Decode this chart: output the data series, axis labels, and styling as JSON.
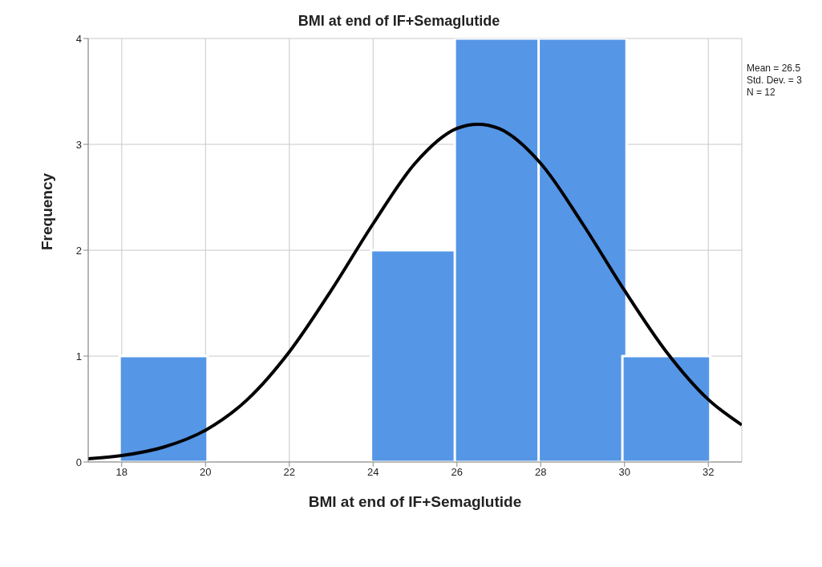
{
  "chart_data": {
    "type": "histogram",
    "title": "BMI at end of IF+Semaglutide",
    "xlabel": "BMI at end of IF+Semaglutide",
    "ylabel": "Frequency",
    "bins": [
      18,
      20,
      22,
      24,
      26,
      28,
      30,
      32
    ],
    "values": [
      1,
      0,
      0,
      2,
      4,
      4,
      1
    ],
    "color": "#5596e6",
    "series": [
      {
        "type": "line",
        "color": "#000000",
        "x": [
          17.2,
          18,
          19,
          20,
          21,
          22,
          23,
          24,
          25,
          26,
          26.5,
          27,
          28,
          29,
          30,
          31,
          32,
          32.8
        ],
        "values": [
          0.03,
          0.06,
          0.14,
          0.3,
          0.59,
          1.04,
          1.62,
          2.25,
          2.82,
          3.15,
          3.19,
          3.15,
          2.82,
          2.25,
          1.62,
          1.04,
          0.59,
          0.35
        ]
      }
    ],
    "xlim": [
      17.2,
      32.8
    ],
    "xticks": [
      18,
      20,
      22,
      24,
      26,
      28,
      30,
      32
    ],
    "ylim": [
      0,
      4
    ],
    "yticks": [
      0,
      1,
      2,
      3,
      4
    ],
    "grid": true,
    "legend": false,
    "marker": "none",
    "line_style": "solid",
    "annotations": [
      "Mean = 26.5",
      "Std. Dev. = 3",
      "N = 12"
    ]
  }
}
